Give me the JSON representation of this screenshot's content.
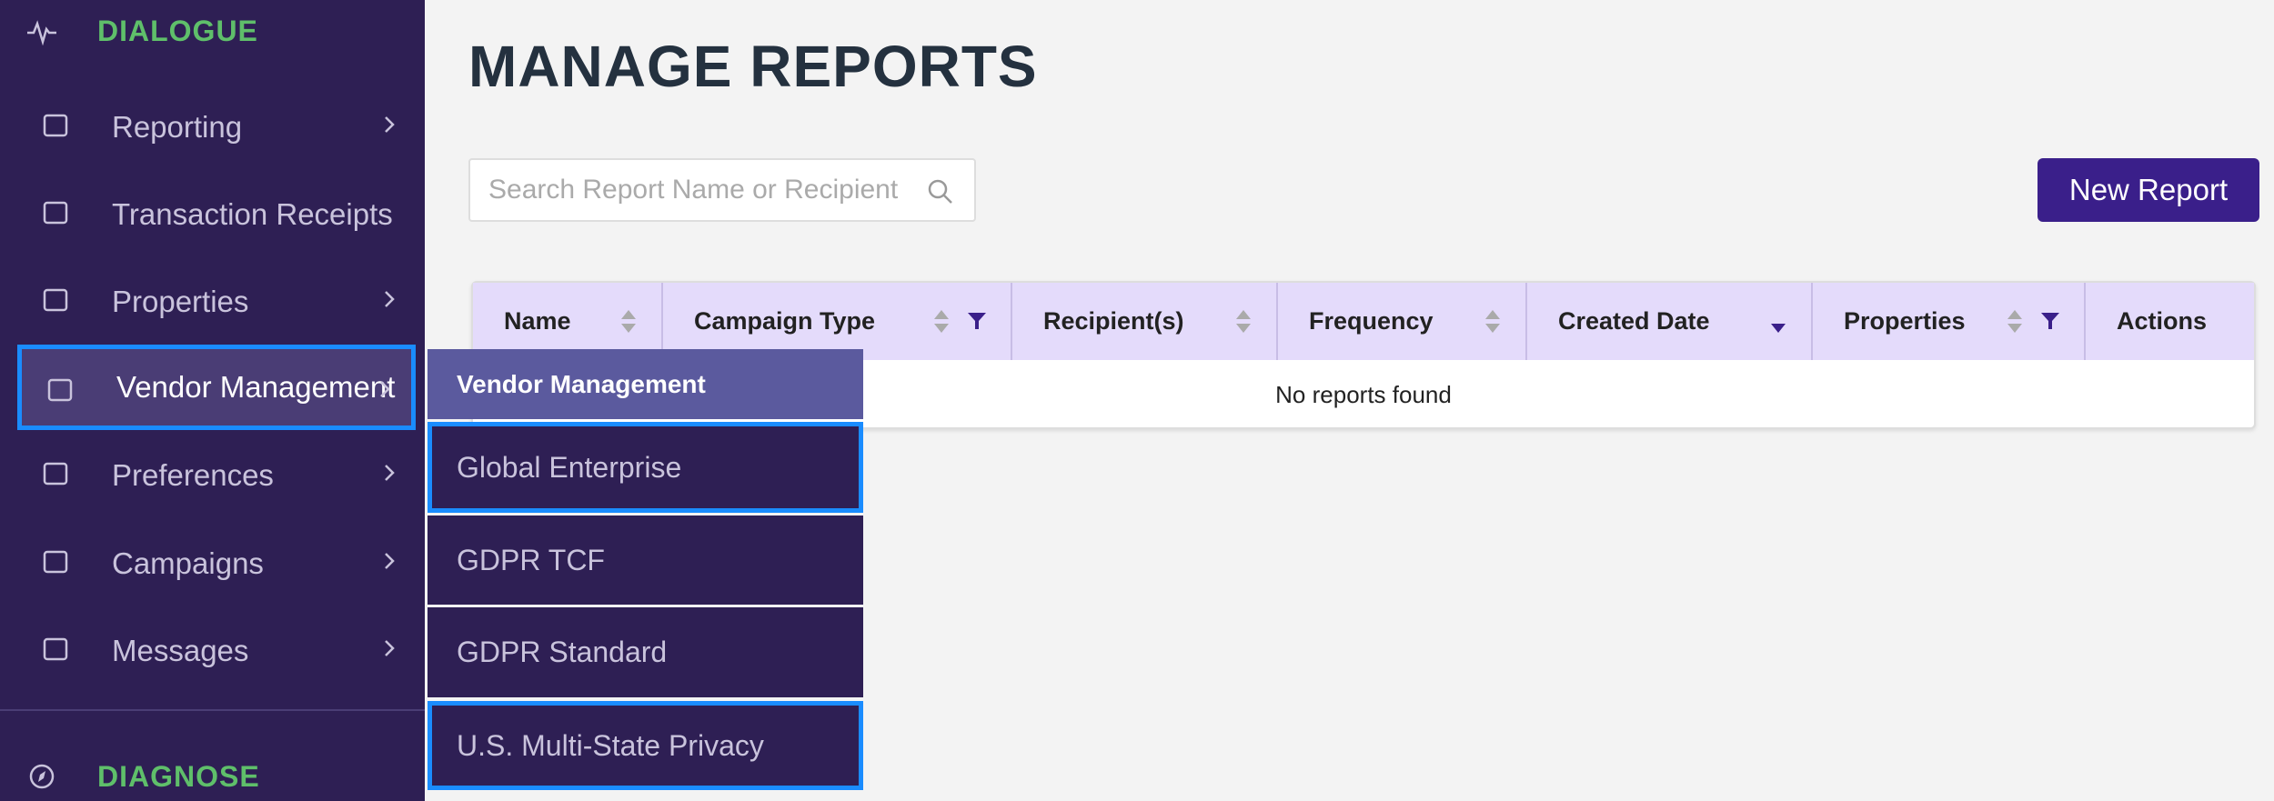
{
  "sidebar": {
    "sections": [
      {
        "title": "DIALOGUE"
      },
      {
        "title": "DIAGNOSE"
      }
    ],
    "items": [
      {
        "label": "Reporting",
        "arrow": true
      },
      {
        "label": "Transaction Receipts",
        "arrow": false
      },
      {
        "label": "Properties",
        "arrow": true
      },
      {
        "label": "Vendor Management",
        "arrow": true,
        "active": true
      },
      {
        "label": "Preferences",
        "arrow": true
      },
      {
        "label": "Campaigns",
        "arrow": true
      },
      {
        "label": "Messages",
        "arrow": true
      }
    ]
  },
  "submenu": {
    "title": "Vendor Management",
    "items": [
      {
        "label": "Global Enterprise",
        "outlined": true
      },
      {
        "label": "GDPR TCF",
        "outlined": false
      },
      {
        "label": "GDPR Standard",
        "outlined": false
      },
      {
        "label": "U.S. Multi-State Privacy",
        "outlined": true
      }
    ]
  },
  "header": {
    "title": "MANAGE REPORTS"
  },
  "search": {
    "placeholder": "Search Report Name or Recipient"
  },
  "button": {
    "label": "New Report"
  },
  "table": {
    "columns": [
      {
        "label": "Name",
        "sort": "none",
        "filter": false
      },
      {
        "label": "Campaign Type",
        "sort": "none",
        "filter": true
      },
      {
        "label": "Recipient(s)",
        "sort": "none",
        "filter": false
      },
      {
        "label": "Frequency",
        "sort": "none",
        "filter": false
      },
      {
        "label": "Created Date",
        "sort": "desc",
        "filter": false
      },
      {
        "label": "Properties",
        "sort": "none",
        "filter": true
      },
      {
        "label": "Actions",
        "sort": null,
        "filter": false
      }
    ],
    "empty": "No reports found"
  }
}
